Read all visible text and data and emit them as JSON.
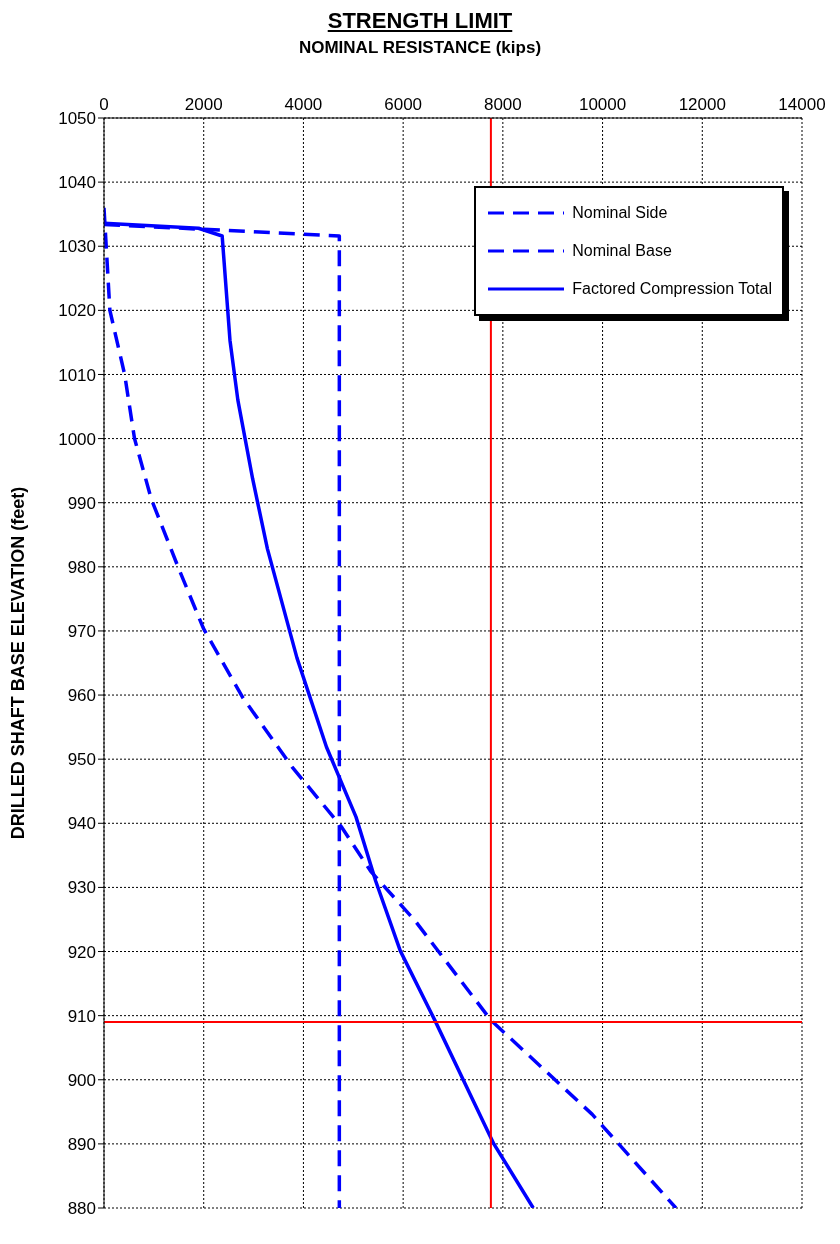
{
  "chart_data": {
    "type": "line",
    "title": "STRENGTH LIMIT",
    "xlabel": "NOMINAL RESISTANCE (kips)",
    "ylabel": "DRILLED SHAFT BASE ELEVATION (feet)",
    "xlim": [
      0,
      14000
    ],
    "xticks": [
      0,
      2000,
      4000,
      6000,
      8000,
      10000,
      12000,
      14000
    ],
    "ylim": [
      880,
      1050
    ],
    "yticks": [
      880,
      890,
      900,
      910,
      920,
      930,
      940,
      950,
      960,
      970,
      980,
      990,
      1000,
      1010,
      1020,
      1030,
      1040,
      1050
    ],
    "grid": true,
    "legend": "top right",
    "marker": "none",
    "series": [
      {
        "name": "Nominal Side",
        "color": "#0000ff",
        "line_style": "dashed",
        "x": [
          0,
          118,
          414,
          612,
          947,
          1500,
          1994,
          2784,
          3771,
          4758,
          5350,
          6239,
          7759,
          9793,
          11471
        ],
        "values": [
          1036,
          1020,
          1010,
          1000,
          990.6,
          979.7,
          970.4,
          959.6,
          948.8,
          939.5,
          932.5,
          924.8,
          909.3,
          894.6,
          880
        ]
      },
      {
        "name": "Nominal Base",
        "color": "#0000ff",
        "line_style": "dashed",
        "x": [
          0,
          4720,
          4720
        ],
        "values": [
          1033.4,
          1031.6,
          880
        ]
      },
      {
        "name": "Factored Compression Total",
        "color": "#0000ff",
        "line_style": "solid",
        "x": [
          0,
          1896,
          2370,
          2527,
          2685,
          2982,
          3278,
          3870,
          4462,
          5054,
          5449,
          5943,
          6634,
          7819,
          8609
        ],
        "values": [
          1033.6,
          1032.8,
          1031.6,
          1015.3,
          1006,
          993.7,
          982.8,
          965.8,
          951.9,
          941,
          931,
          920.1,
          909.3,
          890,
          880
        ]
      }
    ],
    "ref_lines": [
      {
        "axis": "x",
        "value": 7760,
        "color": "#ff0000"
      },
      {
        "axis": "y",
        "value": 909,
        "color": "#ff0000"
      }
    ]
  }
}
